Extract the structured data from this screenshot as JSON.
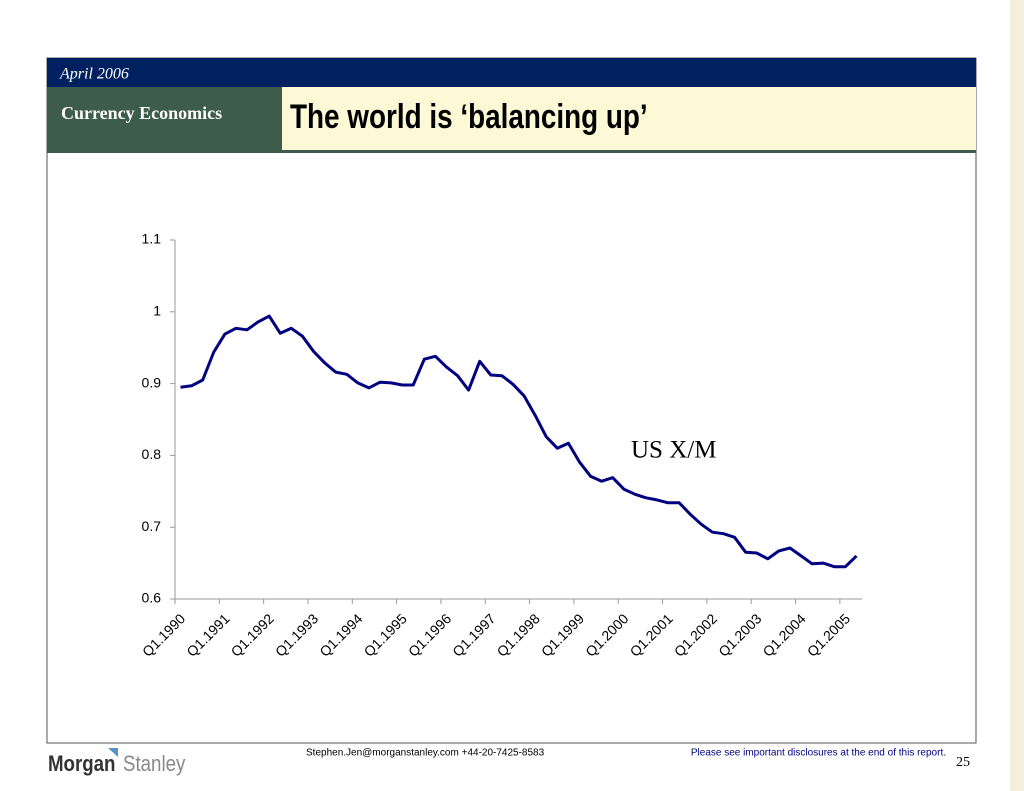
{
  "header": {
    "date": "April 2006",
    "section": "Currency Economics",
    "title": "The world is ‘balancing up’"
  },
  "chart_data": {
    "type": "line",
    "categories": [
      "Q1.1990",
      null,
      null,
      null,
      "Q1.1991",
      null,
      null,
      null,
      "Q1.1992",
      null,
      null,
      null,
      "Q1.1993",
      null,
      null,
      null,
      "Q1.1994",
      null,
      null,
      null,
      "Q1.1995",
      null,
      null,
      null,
      "Q1.1996",
      null,
      null,
      null,
      "Q1.1997",
      null,
      null,
      null,
      "Q1.1998",
      null,
      null,
      null,
      "Q1.1999",
      null,
      null,
      null,
      "Q1.2000",
      null,
      null,
      null,
      "Q1.2001",
      null,
      null,
      null,
      "Q1.2002",
      null,
      null,
      null,
      "Q1.2003",
      null,
      null,
      null,
      "Q1.2004",
      null,
      null,
      null,
      "Q1.2005",
      null
    ],
    "series": [
      {
        "name": "US X/M",
        "color": "#000080",
        "values": [
          0.895,
          0.897,
          0.905,
          0.944,
          0.969,
          0.977,
          0.975,
          0.986,
          0.994,
          0.97,
          0.977,
          0.966,
          0.945,
          0.929,
          0.916,
          0.913,
          0.901,
          0.894,
          0.902,
          0.901,
          0.898,
          0.898,
          0.934,
          0.938,
          0.923,
          0.911,
          0.891,
          0.931,
          0.912,
          0.911,
          0.899,
          0.883,
          0.856,
          0.826,
          0.81,
          0.817,
          0.791,
          0.771,
          0.764,
          0.769,
          0.753,
          0.746,
          0.741,
          0.738,
          0.734,
          0.734,
          0.718,
          0.704,
          0.693,
          0.691,
          0.686,
          0.665,
          0.664,
          0.656,
          0.667,
          0.671,
          0.66,
          0.649,
          0.65,
          0.645,
          0.645,
          0.66
        ]
      }
    ],
    "ylim": [
      0.6,
      1.1
    ],
    "yticks": [
      0.6,
      0.7,
      0.8,
      0.9,
      1,
      1.1
    ]
  },
  "footer": {
    "logo": [
      "Morgan",
      "Stanley"
    ],
    "contact": "Stephen.Jen@morganstanley.com +44-20-7425-8583",
    "disclosure": "Please see  important disclosures at the end of this report.",
    "page": "25"
  }
}
